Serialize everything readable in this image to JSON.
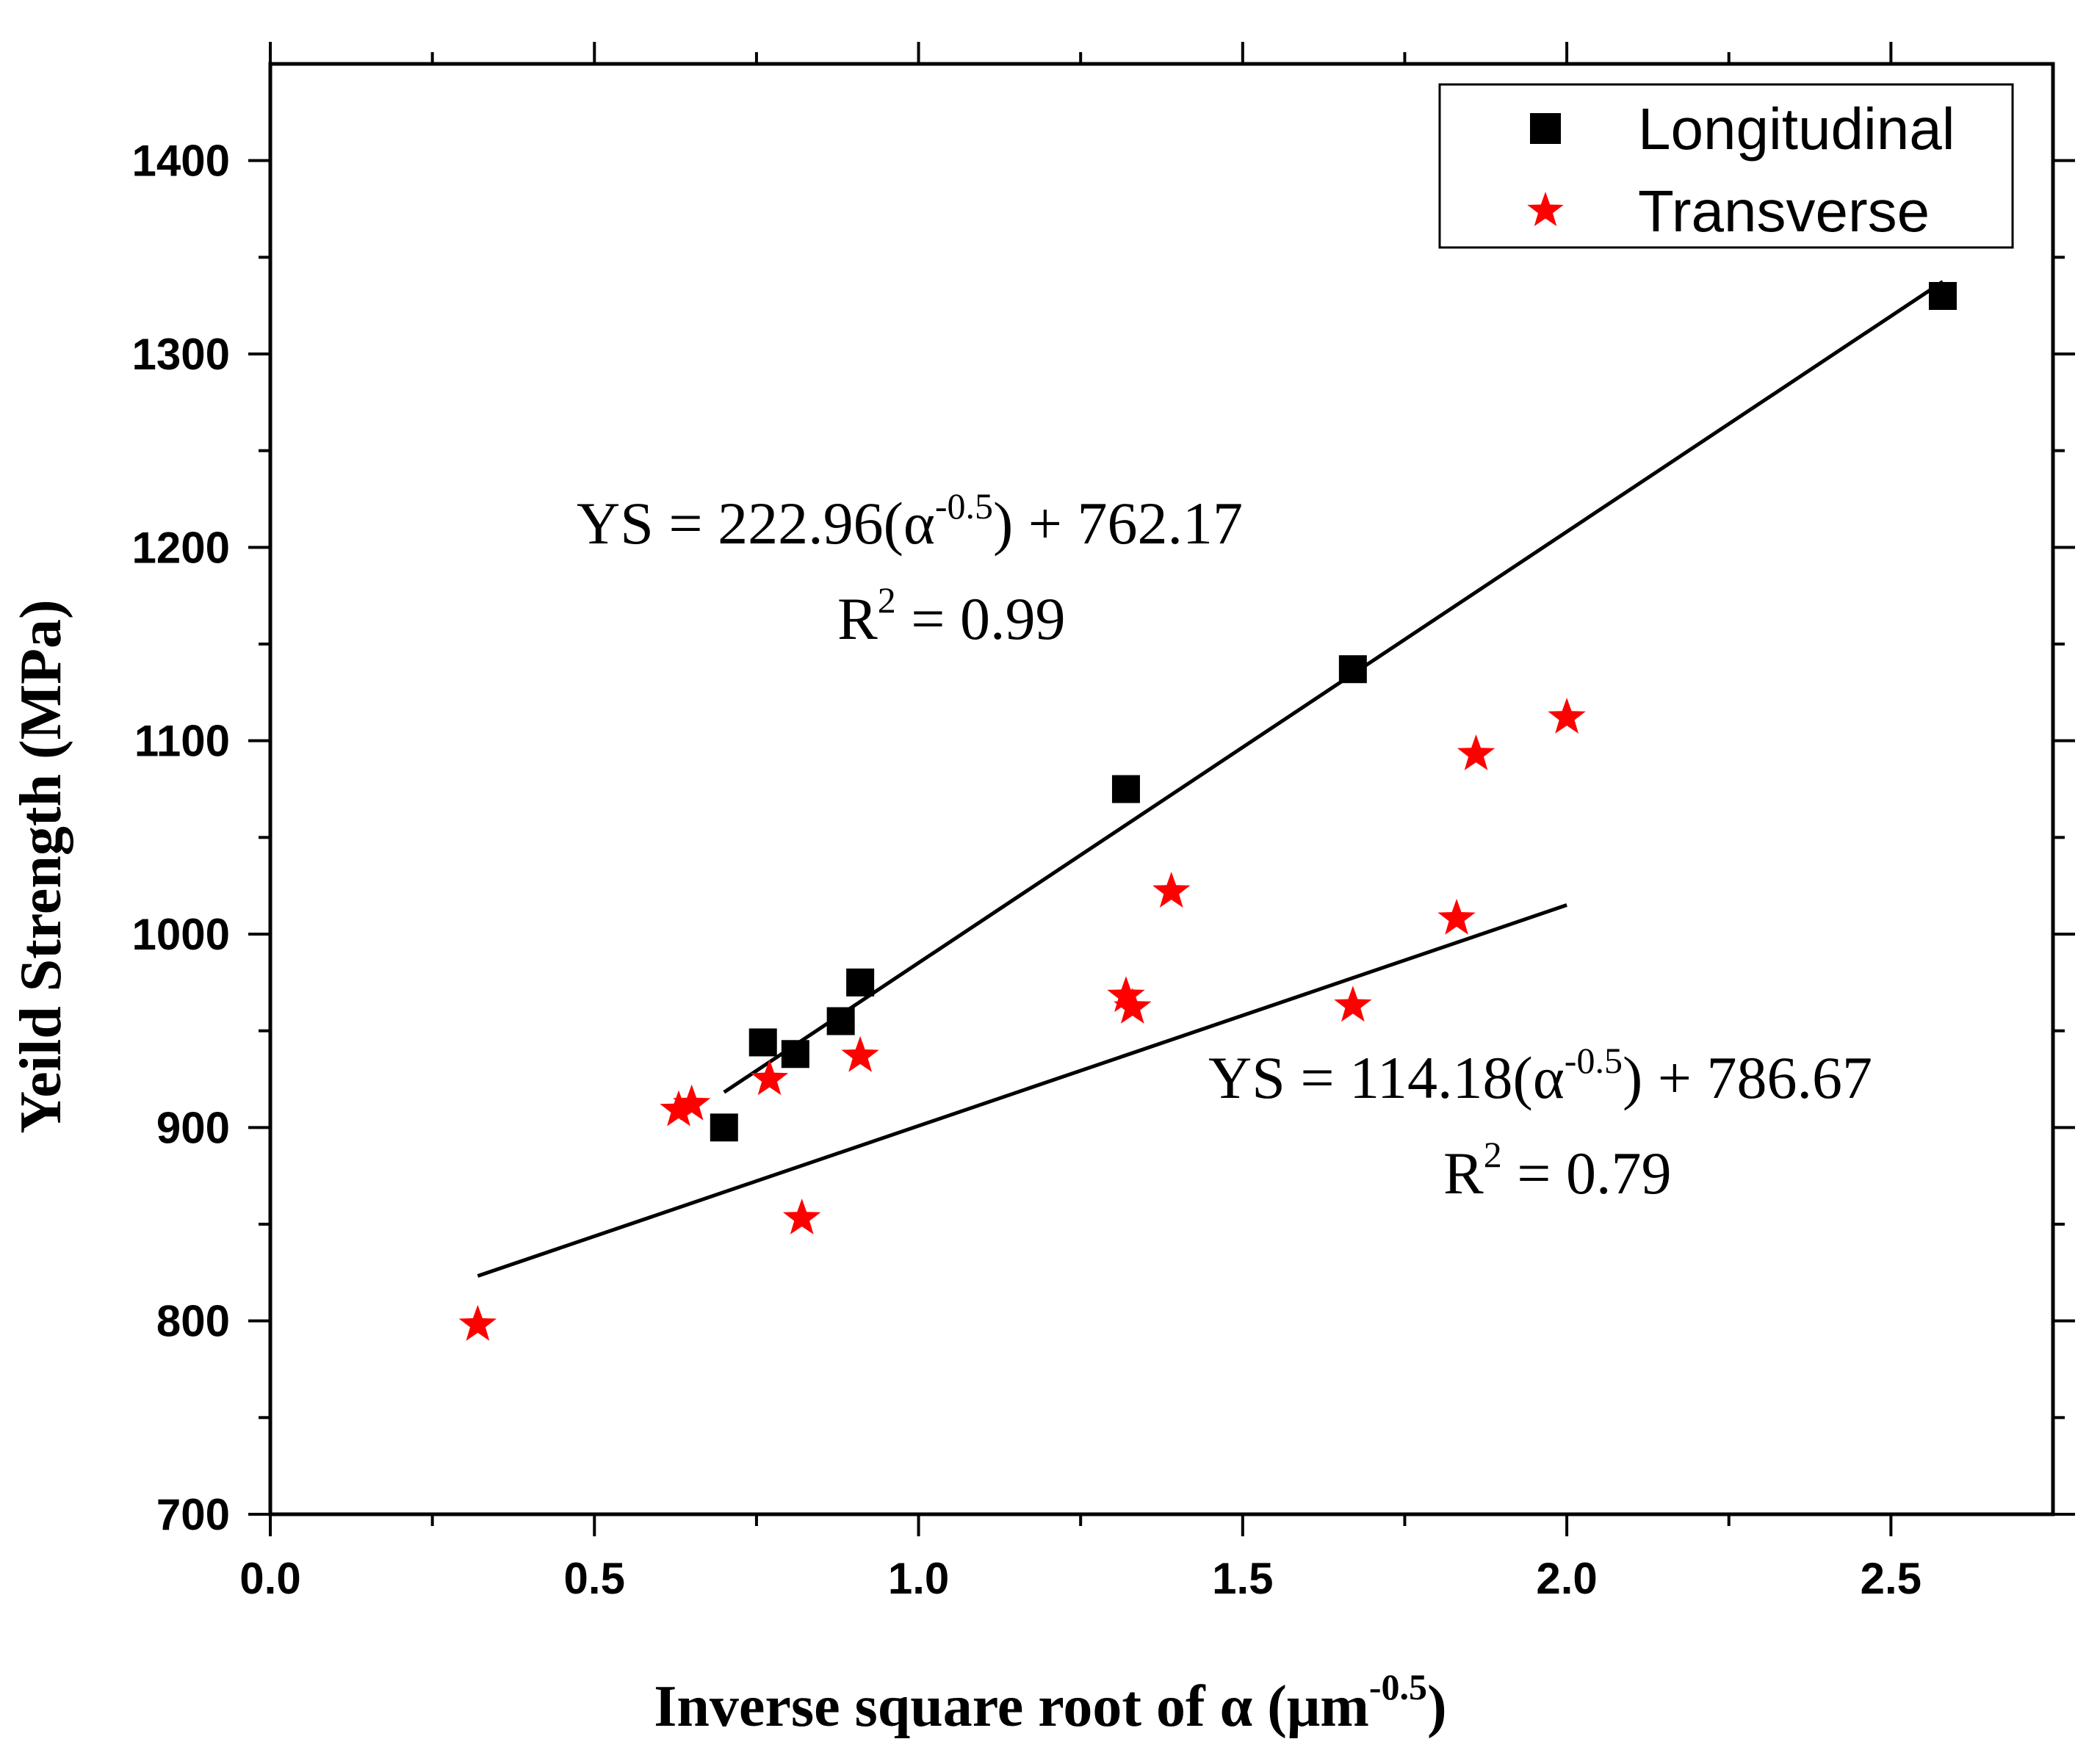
{
  "chart_data": {
    "type": "scatter",
    "title": "",
    "xlabel": "Inverse square root of α (μm",
    "xlabel_sup": "-0.5",
    "xlabel_close": ")",
    "ylabel": "Yeild Strength (MPa)",
    "xlim": [
      0,
      2.75
    ],
    "ylim": [
      700,
      1450
    ],
    "x_ticks": [
      0.0,
      0.5,
      1.0,
      1.5,
      2.0,
      2.5
    ],
    "x_tick_labels": [
      "0.0",
      "0.5",
      "1.0",
      "1.5",
      "2.0",
      "2.5"
    ],
    "y_ticks": [
      700,
      800,
      900,
      1000,
      1100,
      1200,
      1300,
      1400
    ],
    "y_tick_labels": [
      "700",
      "800",
      "900",
      "1000",
      "1100",
      "1200",
      "1300",
      "1400"
    ],
    "x_minor_ticks": [
      0.25,
      0.75,
      1.25,
      1.75,
      2.25
    ],
    "y_minor_ticks": [
      750,
      850,
      950,
      1050,
      1150,
      1250,
      1350
    ],
    "grid": false,
    "legend_position": "top-right",
    "series": [
      {
        "name": "Longitudinal",
        "marker": "square",
        "color": "#000000",
        "points": [
          {
            "x": 0.7,
            "y": 900
          },
          {
            "x": 0.76,
            "y": 944
          },
          {
            "x": 0.81,
            "y": 938
          },
          {
            "x": 0.88,
            "y": 955
          },
          {
            "x": 0.91,
            "y": 975
          },
          {
            "x": 1.32,
            "y": 1075
          },
          {
            "x": 1.67,
            "y": 1137
          },
          {
            "x": 2.58,
            "y": 1330
          }
        ],
        "fit": {
          "slope": 222.96,
          "intercept": 762.17,
          "x_range": [
            0.7,
            2.58
          ],
          "equation_prefix": "YS = 222.96(α",
          "equation_sup": "-0.5",
          "equation_suffix": ") + 762.17",
          "r2_prefix": "R",
          "r2_sup": "2",
          "r2_suffix": " = 0.99"
        }
      },
      {
        "name": "Transverse",
        "marker": "star",
        "color": "#ff0000",
        "points": [
          {
            "x": 0.32,
            "y": 798
          },
          {
            "x": 0.63,
            "y": 909
          },
          {
            "x": 0.65,
            "y": 912
          },
          {
            "x": 0.77,
            "y": 925
          },
          {
            "x": 0.82,
            "y": 853
          },
          {
            "x": 0.91,
            "y": 937
          },
          {
            "x": 1.32,
            "y": 968
          },
          {
            "x": 1.33,
            "y": 962
          },
          {
            "x": 1.39,
            "y": 1022
          },
          {
            "x": 1.67,
            "y": 963
          },
          {
            "x": 1.83,
            "y": 1008
          },
          {
            "x": 1.86,
            "y": 1093
          },
          {
            "x": 2.0,
            "y": 1112
          }
        ],
        "fit": {
          "slope": 114.18,
          "intercept": 786.67,
          "x_range": [
            0.32,
            2.0
          ],
          "equation_prefix": "YS = 114.18(α",
          "equation_sup": "-0.5",
          "equation_suffix": ") + 786.67",
          "r2_prefix": "R",
          "r2_sup": "2",
          "r2_suffix": " = 0.79"
        }
      }
    ]
  }
}
